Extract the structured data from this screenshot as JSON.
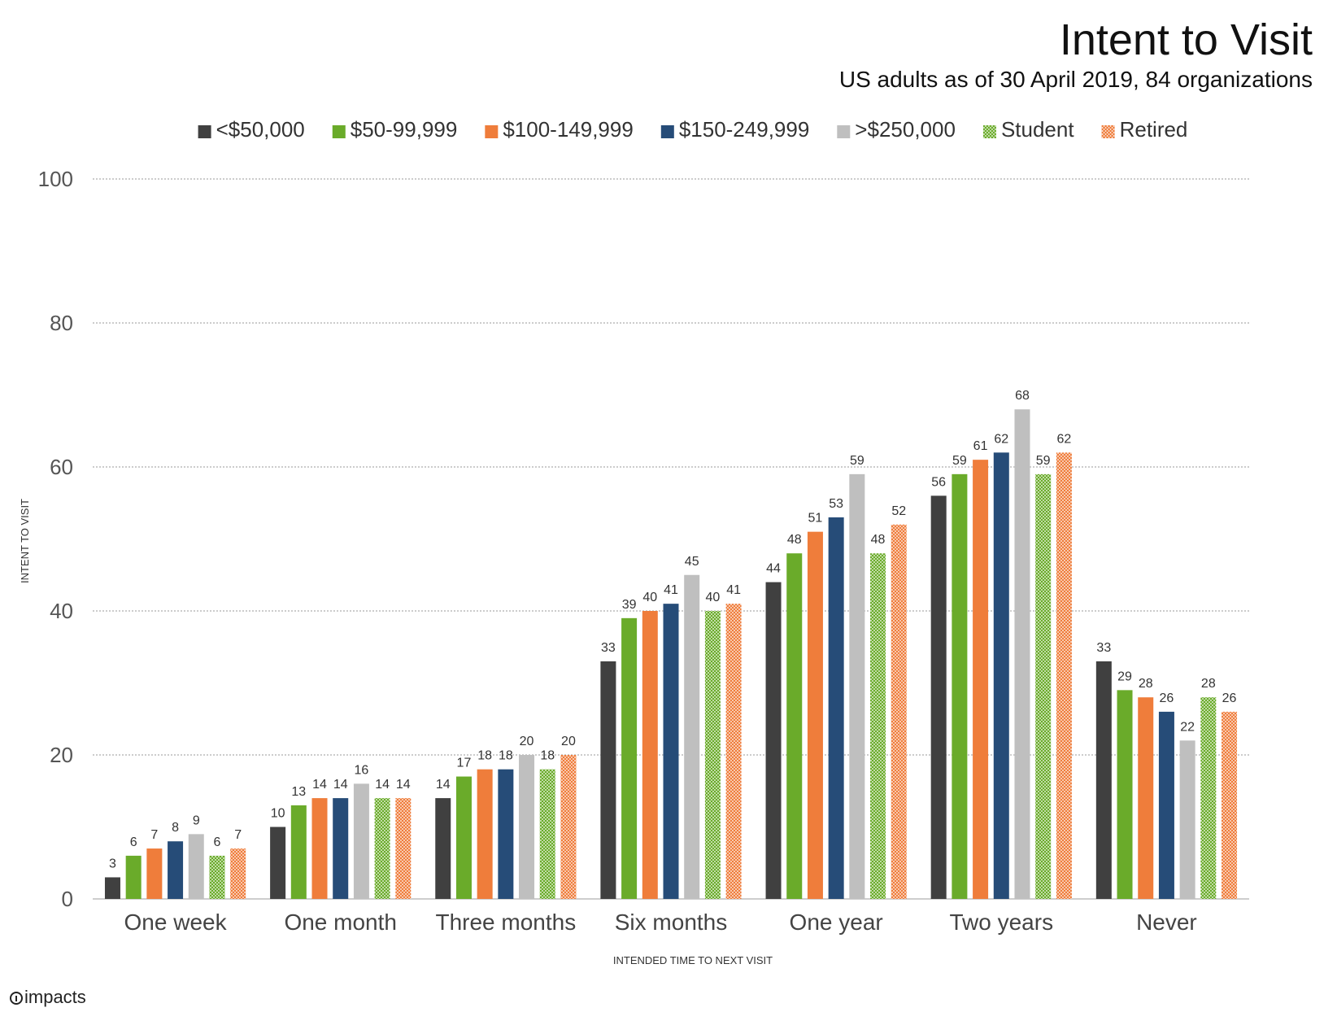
{
  "header": {
    "title": "Intent to Visit",
    "subtitle": "US adults as of 30 April 2019, 84 organizations"
  },
  "footer": {
    "brand": "impacts"
  },
  "chart_data": {
    "type": "bar",
    "title": "Intent to Visit",
    "subtitle": "US adults as of 30 April 2019, 84 organizations",
    "xlabel": "INTENDED TIME TO NEXT VISIT",
    "ylabel": "INTENT TO VISIT",
    "ylim": [
      0,
      100
    ],
    "yticks": [
      0,
      20,
      40,
      60,
      80,
      100
    ],
    "grid": true,
    "legend_position": "top",
    "categories": [
      "One week",
      "One month",
      "Three months",
      "Six months",
      "One year",
      "Two years",
      "Never"
    ],
    "series": [
      {
        "name": "<$50,000",
        "color": "#404040",
        "pattern": "solid",
        "values": [
          3,
          10,
          14,
          33,
          44,
          56,
          33
        ]
      },
      {
        "name": "$50-99,999",
        "color": "#6aab2a",
        "pattern": "solid",
        "values": [
          6,
          13,
          17,
          39,
          48,
          59,
          29
        ]
      },
      {
        "name": "$100-149,999",
        "color": "#ef7d3b",
        "pattern": "solid",
        "values": [
          7,
          14,
          18,
          40,
          51,
          61,
          28
        ]
      },
      {
        "name": "$150-249,999",
        "color": "#264c78",
        "pattern": "solid",
        "values": [
          8,
          14,
          18,
          41,
          53,
          62,
          26
        ]
      },
      {
        "name": ">$250,000",
        "color": "#bfbfbf",
        "pattern": "solid",
        "values": [
          9,
          16,
          20,
          45,
          59,
          68,
          22
        ]
      },
      {
        "name": "Student",
        "color": "#6aab2a",
        "pattern": "dotted",
        "values": [
          6,
          14,
          18,
          40,
          48,
          59,
          28
        ]
      },
      {
        "name": "Retired",
        "color": "#ef7d3b",
        "pattern": "dotted",
        "values": [
          7,
          14,
          20,
          41,
          52,
          62,
          26
        ]
      }
    ]
  }
}
